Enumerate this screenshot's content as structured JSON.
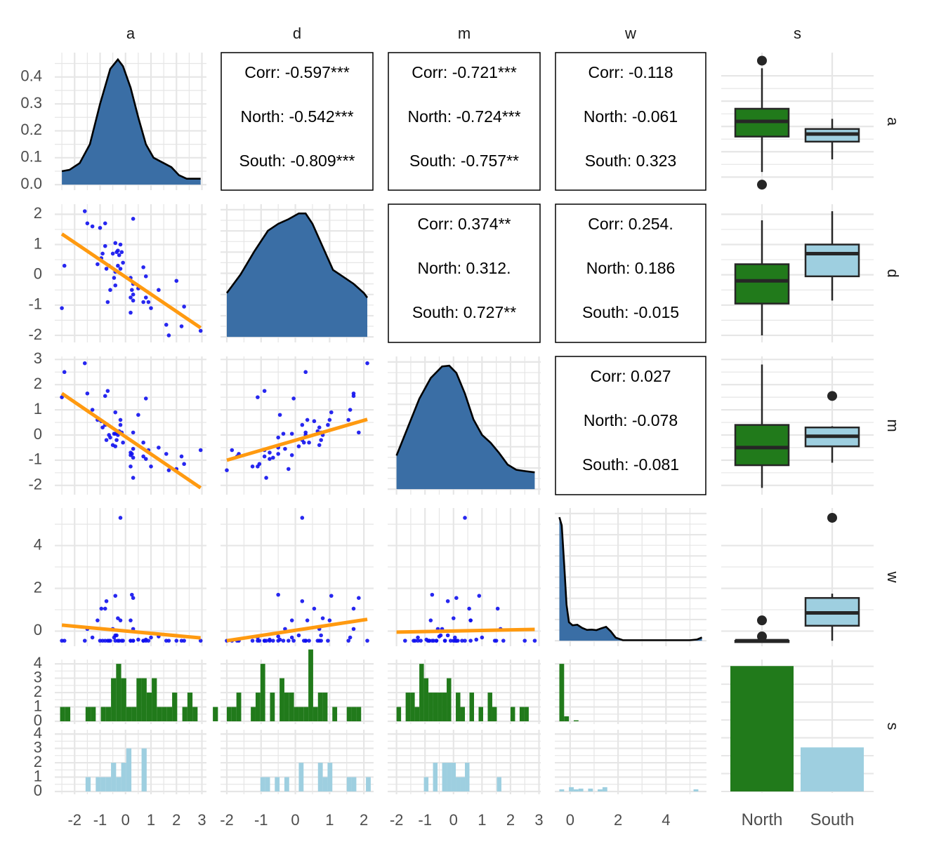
{
  "chart_data": {
    "type": "scatter",
    "title": "",
    "figure": "pairs plot (ggpairs) of a, d, m, w coloured by s",
    "variables": [
      "a",
      "d",
      "m",
      "w",
      "s"
    ],
    "group_variable": "s",
    "groups": [
      "North",
      "South"
    ],
    "colors": {
      "North": "#217a1b",
      "South": "#9ecfe0",
      "density_fill": "#3a6ea5",
      "density_line": "#000000",
      "points": "#1010ee",
      "fit_line": "#ff9a10",
      "box_line": "#262626",
      "grid": "#e6e6e6",
      "axis_text": "#4d4d4d",
      "strip_text": "#1a1a1a"
    },
    "axes": {
      "a": {
        "range": [
          -2.6,
          3.0
        ],
        "ticks": [
          -2,
          -1,
          0,
          1,
          2,
          3
        ],
        "tick_labels": [
          "-2",
          "-1",
          "0",
          "1",
          "2",
          "3"
        ]
      },
      "d": {
        "range": [
          -2.05,
          2.15
        ],
        "ticks": [
          -2,
          -1,
          0,
          1,
          2
        ],
        "tick_labels": [
          "-2",
          "-1",
          "0",
          "1",
          "2"
        ]
      },
      "m": {
        "range": [
          -2.15,
          2.9
        ],
        "ticks": [
          -2,
          -1,
          0,
          1,
          2,
          3
        ],
        "tick_labels": [
          "-2",
          "-1",
          "0",
          "1",
          "2",
          "3"
        ]
      },
      "w": {
        "range": [
          -0.45,
          5.5
        ],
        "ticks": [
          0,
          2,
          4
        ],
        "tick_labels": [
          "0",
          "2",
          "4"
        ]
      },
      "s": {
        "categories": [
          "North",
          "South"
        ],
        "tick_labels": [
          "North",
          "South"
        ]
      }
    },
    "density_axis": {
      "range": [
        0,
        0.47
      ],
      "ticks": [
        0.0,
        0.1,
        0.2,
        0.3,
        0.4
      ],
      "tick_labels": [
        "0.0",
        "0.1",
        "0.2",
        "0.3",
        "0.4"
      ]
    },
    "count_axis": {
      "ticks": [
        0,
        1,
        2,
        3,
        4
      ],
      "tick_labels": [
        "0",
        "1",
        "2",
        "3",
        "4"
      ]
    },
    "correlations": [
      {
        "row": "a",
        "col": "d",
        "lines": [
          "Corr: -0.597***",
          "North: -0.542***",
          "South: -0.809***"
        ]
      },
      {
        "row": "a",
        "col": "m",
        "lines": [
          "Corr: -0.721***",
          "North: -0.724***",
          "South: -0.757**"
        ]
      },
      {
        "row": "a",
        "col": "w",
        "lines": [
          "Corr: -0.118",
          "North: -0.061",
          "South: 0.323"
        ]
      },
      {
        "row": "d",
        "col": "m",
        "lines": [
          "Corr: 0.374**",
          "North: 0.312.",
          "South: 0.727**"
        ]
      },
      {
        "row": "d",
        "col": "w",
        "lines": [
          "Corr: 0.254.",
          "North: 0.186",
          "South: -0.015"
        ]
      },
      {
        "row": "m",
        "col": "w",
        "lines": [
          "Corr: 0.027",
          "North: -0.078",
          "South: -0.081"
        ]
      }
    ],
    "densities": {
      "a": {
        "x": [
          -2.5,
          -2.2,
          -1.8,
          -1.4,
          -1.0,
          -0.6,
          -0.3,
          -0.1,
          0.2,
          0.5,
          0.8,
          1.1,
          1.4,
          1.8,
          2.1,
          2.4,
          2.7,
          2.95
        ],
        "y": [
          0.05,
          0.055,
          0.08,
          0.15,
          0.3,
          0.43,
          0.465,
          0.44,
          0.36,
          0.25,
          0.15,
          0.1,
          0.085,
          0.065,
          0.035,
          0.022,
          0.022,
          0.022
        ]
      },
      "d": {
        "x": [
          -2.0,
          -1.6,
          -1.2,
          -0.8,
          -0.5,
          -0.2,
          0.1,
          0.3,
          0.5,
          0.8,
          1.1,
          1.4,
          1.7,
          2.0,
          2.1
        ],
        "y": [
          0.19,
          0.27,
          0.37,
          0.46,
          0.49,
          0.51,
          0.535,
          0.535,
          0.49,
          0.39,
          0.29,
          0.26,
          0.23,
          0.19,
          0.17
        ]
      },
      "m": {
        "x": [
          -2.0,
          -1.6,
          -1.2,
          -0.8,
          -0.4,
          -0.15,
          0.1,
          0.4,
          0.7,
          1.0,
          1.3,
          1.6,
          1.9,
          2.2,
          2.5,
          2.85
        ],
        "y": [
          0.13,
          0.24,
          0.35,
          0.43,
          0.475,
          0.478,
          0.45,
          0.37,
          0.27,
          0.21,
          0.18,
          0.14,
          0.095,
          0.075,
          0.07,
          0.065
        ]
      },
      "w": {
        "x": [
          -0.45,
          -0.35,
          -0.25,
          -0.15,
          -0.05,
          0.1,
          0.3,
          0.5,
          0.7,
          0.9,
          1.1,
          1.3,
          1.5,
          1.7,
          1.9,
          2.2,
          3.0,
          4.0,
          5.0,
          5.3,
          5.5
        ],
        "y": [
          1.2,
          1.12,
          0.75,
          0.35,
          0.18,
          0.15,
          0.155,
          0.125,
          0.105,
          0.108,
          0.103,
          0.12,
          0.135,
          0.09,
          0.03,
          0.005,
          0.005,
          0.005,
          0.005,
          0.012,
          0.032
        ]
      }
    },
    "fit_lines": {
      "a_d": {
        "x": [
          -2.5,
          2.95
        ],
        "y": [
          1.35,
          -1.75
        ]
      },
      "a_m": {
        "x": [
          -2.5,
          2.95
        ],
        "y": [
          1.65,
          -2.1
        ]
      },
      "a_w": {
        "x": [
          -2.5,
          2.95
        ],
        "y": [
          0.28,
          -0.32
        ]
      },
      "d_m": {
        "x": [
          -2.0,
          2.1
        ],
        "y": [
          -1.0,
          0.62
        ]
      },
      "d_w": {
        "x": [
          -2.0,
          2.1
        ],
        "y": [
          -0.45,
          0.55
        ]
      },
      "m_w": {
        "x": [
          -2.0,
          2.85
        ],
        "y": [
          -0.05,
          0.08
        ]
      }
    },
    "scatter_points": [
      {
        "a": -2.5,
        "d": -1.1,
        "m": 1.5,
        "w": -0.45
      },
      {
        "a": -2.4,
        "d": 0.3,
        "m": 2.5,
        "w": -0.45
      },
      {
        "a": -1.6,
        "d": 2.1,
        "m": 2.85,
        "w": -0.45
      },
      {
        "a": -1.5,
        "d": 1.7,
        "m": 1.65,
        "w": 0.1
      },
      {
        "a": -1.3,
        "d": 1.6,
        "m": 1.0,
        "w": -0.3
      },
      {
        "a": -1.1,
        "d": 0.35,
        "m": 0.6,
        "w": 0.5
      },
      {
        "a": -1.0,
        "d": 1.55,
        "m": 0.6,
        "w": -0.45
      },
      {
        "a": -0.95,
        "d": 0.55,
        "m": 0.55,
        "w": 1.05
      },
      {
        "a": -0.9,
        "d": 0.7,
        "m": 0.3,
        "w": -0.45
      },
      {
        "a": -0.8,
        "d": 1.7,
        "m": 1.55,
        "w": 1.05
      },
      {
        "a": -0.8,
        "d": 0.95,
        "m": 0.4,
        "w": -0.45
      },
      {
        "a": -0.75,
        "d": 0.2,
        "m": -0.2,
        "w": 1.4
      },
      {
        "a": -0.7,
        "d": -0.9,
        "m": 1.75,
        "w": -0.45
      },
      {
        "a": -0.65,
        "d": 0.3,
        "m": 0.0,
        "w": -0.45
      },
      {
        "a": -0.6,
        "d": -0.5,
        "m": -0.1,
        "w": -0.45
      },
      {
        "a": -0.5,
        "d": 0.7,
        "m": -0.4,
        "w": 0.1
      },
      {
        "a": -0.45,
        "d": -0.1,
        "m": 0.05,
        "w": -0.3
      },
      {
        "a": -0.4,
        "d": 1.05,
        "m": 0.9,
        "w": 1.65
      },
      {
        "a": -0.4,
        "d": 0.1,
        "m": -0.45,
        "w": -0.2
      },
      {
        "a": -0.4,
        "d": -0.35,
        "m": 0.05,
        "w": -0.45
      },
      {
        "a": -0.35,
        "d": 0.75,
        "m": -0.2,
        "w": -0.2
      },
      {
        "a": -0.3,
        "d": 0.8,
        "m": 0.0,
        "w": 0.6
      },
      {
        "a": -0.3,
        "d": 0.3,
        "m": 0.1,
        "w": -0.45
      },
      {
        "a": -0.25,
        "d": 0.65,
        "m": 0.15,
        "w": -0.45
      },
      {
        "a": -0.2,
        "d": 1.0,
        "m": 0.6,
        "w": 0.5
      },
      {
        "a": -0.2,
        "d": 0.2,
        "m": 0.4,
        "w": 5.3
      },
      {
        "a": -0.15,
        "d": 0.75,
        "m": 0.1,
        "w": -0.45
      },
      {
        "a": -0.1,
        "d": 0.4,
        "m": -0.3,
        "w": -0.45
      },
      {
        "a": 0.2,
        "d": -0.1,
        "m": -0.8,
        "w": 0.5
      },
      {
        "a": 0.2,
        "d": -0.75,
        "m": -0.7,
        "w": -0.45
      },
      {
        "a": 0.2,
        "d": -1.25,
        "m": -1.25,
        "w": -0.45
      },
      {
        "a": 0.25,
        "d": -0.5,
        "m": -0.75,
        "w": 1.7
      },
      {
        "a": 0.3,
        "d": 1.85,
        "m": 0.1,
        "w": 1.55
      },
      {
        "a": 0.3,
        "d": -0.3,
        "m": -0.55,
        "w": 0.1
      },
      {
        "a": 0.3,
        "d": -0.65,
        "m": -0.9,
        "w": -0.45
      },
      {
        "a": 0.3,
        "d": -0.85,
        "m": -1.7,
        "w": -0.45
      },
      {
        "a": 0.5,
        "d": -0.45,
        "m": 0.8,
        "w": -0.4
      },
      {
        "a": 0.7,
        "d": 0.25,
        "m": -0.3,
        "w": -0.45
      },
      {
        "a": 0.7,
        "d": -0.9,
        "m": -0.85,
        "w": -0.45
      },
      {
        "a": 0.8,
        "d": -0.05,
        "m": 1.45,
        "w": -0.45
      },
      {
        "a": 0.8,
        "d": -0.75,
        "m": -0.95,
        "w": -0.4
      },
      {
        "a": 0.9,
        "d": -0.9,
        "m": -0.6,
        "w": -0.45
      },
      {
        "a": 1.0,
        "d": -1.1,
        "m": -1.25,
        "w": -0.3
      },
      {
        "a": 1.3,
        "d": -0.5,
        "m": -0.5,
        "w": -0.25
      },
      {
        "a": 1.6,
        "d": -1.65,
        "m": -0.75,
        "w": -0.45
      },
      {
        "a": 1.7,
        "d": -2.0,
        "m": -1.4,
        "w": -0.45
      },
      {
        "a": 2.0,
        "d": -0.2,
        "m": -1.35,
        "w": -0.45
      },
      {
        "a": 2.2,
        "d": -1.7,
        "m": -0.85,
        "w": -0.45
      },
      {
        "a": 2.3,
        "d": -1.05,
        "m": -1.15,
        "w": -0.45
      },
      {
        "a": 2.95,
        "d": -1.85,
        "m": -0.6,
        "w": -0.45
      }
    ],
    "boxplots": {
      "a": {
        "North": {
          "q1": 0.16,
          "median": 0.22,
          "q3": 0.27,
          "whisker_low": 0.02,
          "whisker_high": 0.43,
          "outliers": [
            0.46,
            -0.03
          ]
        },
        "South": {
          "q1": 0.14,
          "median": 0.17,
          "q3": 0.19,
          "whisker_low": 0.07,
          "whisker_high": 0.23,
          "outliers": []
        }
      },
      "d": {
        "North": {
          "q1": -0.95,
          "median": -0.2,
          "q3": 0.35,
          "whisker_low": -2.0,
          "whisker_high": 1.8,
          "outliers": []
        },
        "South": {
          "q1": -0.05,
          "median": 0.7,
          "q3": 1.0,
          "whisker_low": -0.85,
          "whisker_high": 2.1,
          "outliers": []
        }
      },
      "m": {
        "North": {
          "q1": -1.2,
          "median": -0.5,
          "q3": 0.4,
          "whisker_low": -2.1,
          "whisker_high": 2.8,
          "outliers": []
        },
        "South": {
          "q1": -0.45,
          "median": -0.05,
          "q3": 0.3,
          "whisker_low": -1.1,
          "whisker_high": 0.35,
          "outliers": [
            1.55
          ]
        }
      },
      "w": {
        "North": {
          "q1": -0.45,
          "median": -0.45,
          "q3": -0.45,
          "whisker_low": -0.45,
          "whisker_high": -0.45,
          "outliers": [
            0.5,
            -0.25
          ]
        },
        "South": {
          "q1": 0.25,
          "median": 0.85,
          "q3": 1.55,
          "whisker_low": -0.45,
          "whisker_high": 1.75,
          "outliers": [
            5.3
          ]
        }
      }
    },
    "histograms": {
      "a": {
        "North": {
          "x0": -2.57,
          "bin": 0.2,
          "counts": [
            1,
            1,
            0,
            0,
            0,
            1,
            1,
            0,
            1,
            1,
            3,
            4,
            3,
            1,
            1,
            3,
            3,
            2,
            3,
            1,
            1,
            1,
            2,
            0,
            1,
            2,
            1,
            0,
            0,
            0,
            1
          ]
        },
        "South": {
          "x0": -2.57,
          "bin": 0.2,
          "counts": [
            0,
            0,
            0,
            0,
            0,
            1,
            0,
            1,
            1,
            1,
            2,
            1,
            2,
            3,
            0,
            0,
            3,
            0,
            0,
            0,
            0,
            0,
            0,
            0,
            0,
            0,
            0,
            0,
            0,
            0,
            0
          ]
        }
      },
      "d": {
        "North": {
          "x0": -2.0,
          "bin": 0.14,
          "counts": [
            1,
            1,
            2,
            0,
            0,
            1,
            2,
            4,
            0,
            2,
            0,
            3,
            2,
            2,
            1,
            1,
            1,
            5,
            1,
            2,
            2,
            0,
            1,
            0,
            0,
            1,
            1,
            1,
            0,
            0
          ]
        },
        "South": {
          "x0": -2.0,
          "bin": 0.14,
          "counts": [
            0,
            0,
            0,
            0,
            0,
            0,
            0,
            1,
            1,
            0,
            1,
            0,
            1,
            0,
            0,
            2,
            0,
            0,
            0,
            2,
            1,
            2,
            0,
            0,
            0,
            1,
            1,
            0,
            0,
            1
          ]
        }
      },
      "m": {
        "North": {
          "x0": -2.0,
          "bin": 0.16,
          "counts": [
            1,
            0,
            2,
            2,
            1,
            4,
            3,
            2,
            2,
            2,
            2,
            3,
            0,
            2,
            1,
            0,
            2,
            0,
            1,
            0,
            2,
            1,
            0,
            0,
            0,
            1,
            0,
            1,
            1,
            0
          ]
        },
        "South": {
          "x0": -2.0,
          "bin": 0.16,
          "counts": [
            0,
            0,
            0,
            0,
            0,
            0,
            1,
            0,
            2,
            0,
            2,
            2,
            2,
            1,
            1,
            2,
            0,
            0,
            0,
            0,
            0,
            0,
            1,
            0,
            0,
            0,
            0,
            0,
            0,
            0
          ]
        }
      },
      "w": {
        "North": {
          "x0": -0.45,
          "bin": 0.2,
          "counts": [
            4,
            0.35,
            0,
            0.07,
            0,
            0,
            0,
            0,
            0,
            0,
            0,
            0,
            0,
            0,
            0,
            0,
            0,
            0,
            0,
            0,
            0,
            0,
            0,
            0,
            0,
            0,
            0,
            0,
            0
          ]
        },
        "South": {
          "x0": -0.45,
          "bin": 0.2,
          "counts": [
            0.15,
            0,
            0.3,
            0.15,
            0.2,
            0,
            0.2,
            0,
            0.15,
            0.3,
            0,
            0,
            0,
            0,
            0,
            0,
            0,
            0,
            0,
            0,
            0,
            0,
            0,
            0,
            0,
            0,
            0,
            0,
            0.15
          ]
        }
      }
    },
    "group_counts": {
      "North": 37,
      "South": 13
    },
    "bar_axis_max": 38.5
  }
}
